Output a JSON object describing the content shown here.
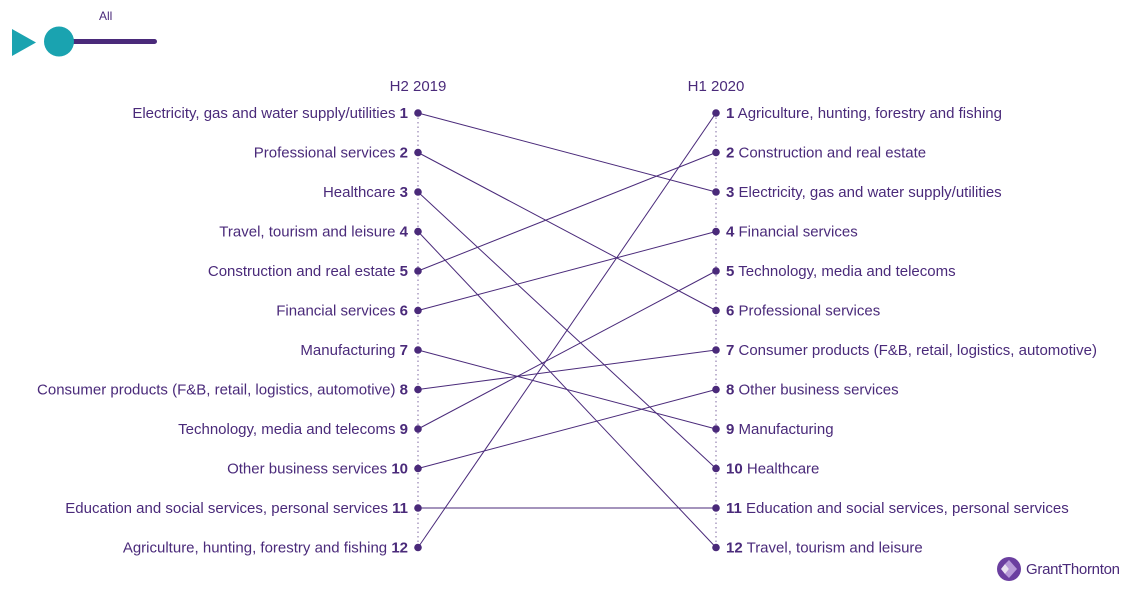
{
  "player": {
    "label": "All",
    "progress": 0,
    "colors": {
      "play": "#1aa3b0",
      "knob": "#1aa3b0",
      "track": "#4a2a7a"
    }
  },
  "brand": {
    "name": "GrantThornton"
  },
  "colors": {
    "text": "#4a2a7a",
    "line": "#4a2a7a",
    "dot": "#4a2a7a"
  },
  "chart_data": {
    "type": "slope",
    "columns": [
      "H2 2019",
      "H1 2020"
    ],
    "rankings": [
      {
        "sector": "Electricity, gas and water supply/utilities",
        "H2 2019": 1,
        "H1 2020": 3
      },
      {
        "sector": "Professional services",
        "H2 2019": 2,
        "H1 2020": 6
      },
      {
        "sector": "Healthcare",
        "H2 2019": 3,
        "H1 2020": 10
      },
      {
        "sector": "Travel, tourism and leisure",
        "H2 2019": 4,
        "H1 2020": 12
      },
      {
        "sector": "Construction and real estate",
        "H2 2019": 5,
        "H1 2020": 2
      },
      {
        "sector": "Financial services",
        "H2 2019": 6,
        "H1 2020": 4
      },
      {
        "sector": "Manufacturing",
        "H2 2019": 7,
        "H1 2020": 9
      },
      {
        "sector": "Consumer products (F&B, retail, logistics, automotive)",
        "H2 2019": 8,
        "H1 2020": 7
      },
      {
        "sector": "Technology, media and telecoms",
        "H2 2019": 9,
        "H1 2020": 5
      },
      {
        "sector": "Other business services",
        "H2 2019": 10,
        "H1 2020": 8
      },
      {
        "sector": "Education and social services, personal services",
        "H2 2019": 11,
        "H1 2020": 11
      },
      {
        "sector": "Agriculture, hunting, forestry and fishing",
        "H2 2019": 12,
        "H1 2020": 1
      }
    ]
  }
}
